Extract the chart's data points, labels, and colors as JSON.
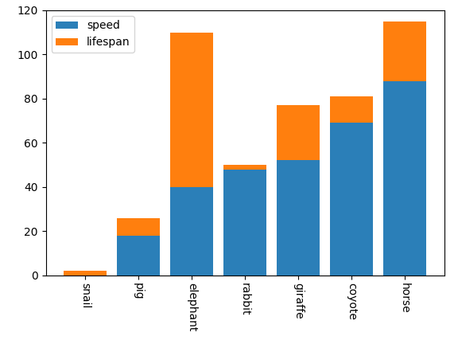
{
  "categories": [
    "snail",
    "pig",
    "elephant",
    "rabbit",
    "giraffe",
    "coyote",
    "horse"
  ],
  "speed": [
    0,
    18,
    40,
    48,
    52,
    69,
    88
  ],
  "lifespan": [
    2,
    8,
    70,
    2,
    25,
    12,
    27
  ],
  "speed_color": "#2b7fb8",
  "lifespan_color": "#ff7f0e",
  "legend_labels": [
    "speed",
    "lifespan"
  ],
  "ylim": [
    0,
    120
  ],
  "yticks": [
    0,
    20,
    40,
    60,
    80,
    100,
    120
  ],
  "figsize": [
    5.76,
    4.32
  ],
  "dpi": 100
}
